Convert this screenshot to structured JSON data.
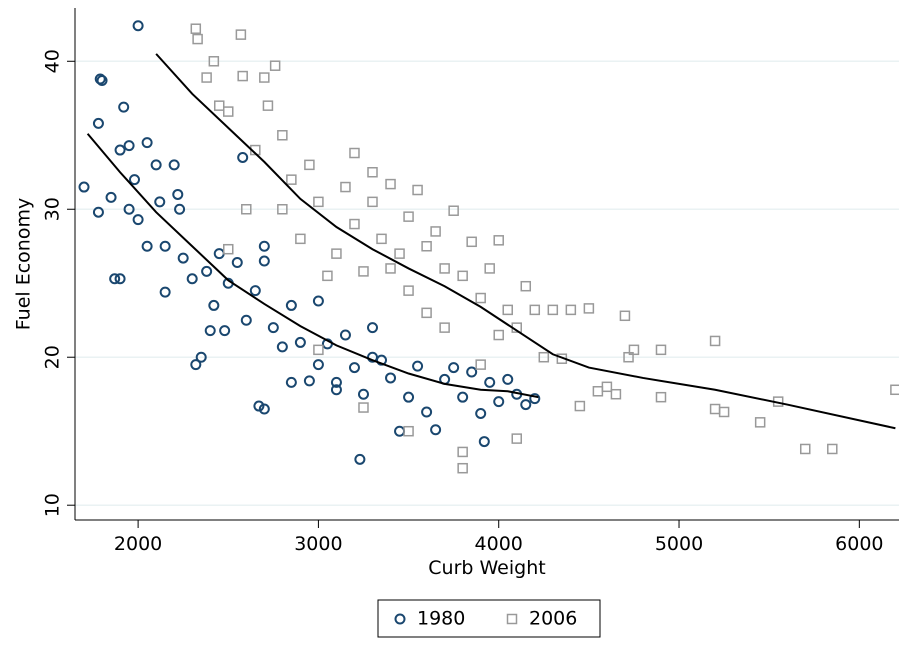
{
  "chart_data": {
    "type": "scatter",
    "x_label": "Curb Weight",
    "y_label": "Fuel Economy",
    "xlim": [
      1650,
      6220
    ],
    "ylim": [
      9,
      43.6
    ],
    "xticks": [
      2000,
      3000,
      4000,
      5000,
      6000
    ],
    "yticks": [
      10,
      20,
      30,
      40
    ],
    "grid": true,
    "legend": "bottom",
    "series": [
      {
        "name": "1980",
        "marker": "circle",
        "color": "#1a476f",
        "x": [
          1700,
          1780,
          1790,
          1800,
          1780,
          1850,
          1870,
          1900,
          1900,
          1920,
          1950,
          1980,
          2000,
          2000,
          2050,
          2100,
          2120,
          2150,
          2200,
          2220,
          2250,
          2300,
          2320,
          2350,
          2380,
          2420,
          2450,
          2480,
          2500,
          2550,
          2580,
          2600,
          2650,
          2670,
          2700,
          2700,
          2750,
          2800,
          2850,
          2850,
          2900,
          2950,
          3000,
          3000,
          3050,
          3100,
          3150,
          3200,
          3230,
          3250,
          3300,
          3350,
          3400,
          3450,
          3500,
          3550,
          3600,
          3650,
          3700,
          3750,
          3800,
          3850,
          3900,
          3920,
          3950,
          4000,
          4050,
          4100,
          4150,
          4200,
          2150,
          2400,
          3300,
          2230,
          2050,
          1950,
          2700,
          3100
        ],
        "values": [
          31.5,
          35.8,
          38.8,
          38.7,
          29.8,
          30.8,
          25.3,
          25.3,
          34,
          36.9,
          34.3,
          32,
          42.4,
          29.3,
          34.5,
          33,
          30.5,
          27.5,
          33,
          31,
          26.7,
          25.3,
          19.5,
          20,
          25.8,
          23.5,
          27,
          21.8,
          25,
          26.4,
          33.5,
          22.5,
          24.5,
          16.7,
          16.5,
          26.5,
          22,
          20.7,
          18.3,
          23.5,
          21,
          18.4,
          19.5,
          23.8,
          20.9,
          18.3,
          21.5,
          19.3,
          13.1,
          17.5,
          20,
          19.8,
          18.6,
          15,
          17.3,
          19.4,
          16.3,
          15.1,
          18.5,
          19.3,
          17.3,
          19,
          16.2,
          14.3,
          18.3,
          17,
          18.5,
          17.5,
          16.8,
          17.2,
          24.4,
          21.8,
          22,
          30,
          27.5,
          30,
          27.5,
          17.8
        ]
      },
      {
        "name": "2006",
        "marker": "square",
        "color": "#999999",
        "x": [
          2320,
          2330,
          2380,
          2420,
          2450,
          2500,
          2570,
          2580,
          2650,
          2700,
          2720,
          2760,
          2800,
          2800,
          2850,
          2900,
          2950,
          3000,
          3050,
          3100,
          3150,
          3200,
          3200,
          3250,
          3300,
          3300,
          3350,
          3400,
          3400,
          3450,
          3500,
          3500,
          3550,
          3600,
          3600,
          3650,
          3700,
          3700,
          3750,
          3800,
          3850,
          3900,
          3950,
          4000,
          4000,
          4050,
          4100,
          4150,
          4200,
          4250,
          4300,
          4350,
          4400,
          4450,
          4500,
          4550,
          4600,
          4650,
          4700,
          4720,
          4750,
          4900,
          4900,
          5200,
          5200,
          5250,
          5450,
          5550,
          5700,
          5850,
          6200,
          3800,
          3800,
          4100,
          3500,
          3250,
          3000,
          2600,
          2500,
          3900
        ],
        "values": [
          42.2,
          41.5,
          38.9,
          40,
          37,
          36.6,
          41.8,
          39,
          34,
          38.9,
          37,
          39.7,
          35,
          30,
          32,
          28,
          33,
          30.5,
          25.5,
          27,
          31.5,
          33.8,
          29,
          25.8,
          32.5,
          30.5,
          28,
          31.7,
          26,
          27,
          29.5,
          24.5,
          31.3,
          27.5,
          23,
          28.5,
          26,
          22,
          29.9,
          25.5,
          27.8,
          24,
          26,
          27.9,
          21.5,
          23.2,
          22,
          24.8,
          23.2,
          20,
          23.2,
          19.9,
          23.2,
          16.7,
          23.3,
          17.7,
          18,
          17.5,
          22.8,
          20,
          20.5,
          20.5,
          17.3,
          21.1,
          16.5,
          16.3,
          15.6,
          17,
          13.8,
          13.8,
          17.8,
          12.5,
          13.6,
          14.5,
          15,
          16.6,
          20.5,
          30,
          27.3,
          19.5
        ]
      }
    ],
    "lines": [
      {
        "color": "#000000",
        "x": [
          1720,
          1900,
          2100,
          2300,
          2500,
          2700,
          2900,
          3100,
          3300,
          3500,
          3700,
          3900,
          4050,
          4220
        ],
        "values": [
          35.1,
          32.5,
          29.8,
          27.5,
          25.2,
          23.6,
          22.1,
          20.8,
          19.8,
          18.9,
          18.2,
          17.8,
          17.7,
          17.3
        ]
      },
      {
        "color": "#000000",
        "x": [
          2100,
          2300,
          2500,
          2700,
          2900,
          3100,
          3300,
          3500,
          3700,
          3900,
          4100,
          4300,
          4500,
          4800,
          5200,
          5600,
          6200
        ],
        "values": [
          40.5,
          37.8,
          35.5,
          33.2,
          30.7,
          28.8,
          27.3,
          26,
          24.8,
          23.4,
          21.8,
          20.2,
          19.3,
          18.6,
          17.8,
          16.8,
          15.2
        ]
      }
    ]
  }
}
